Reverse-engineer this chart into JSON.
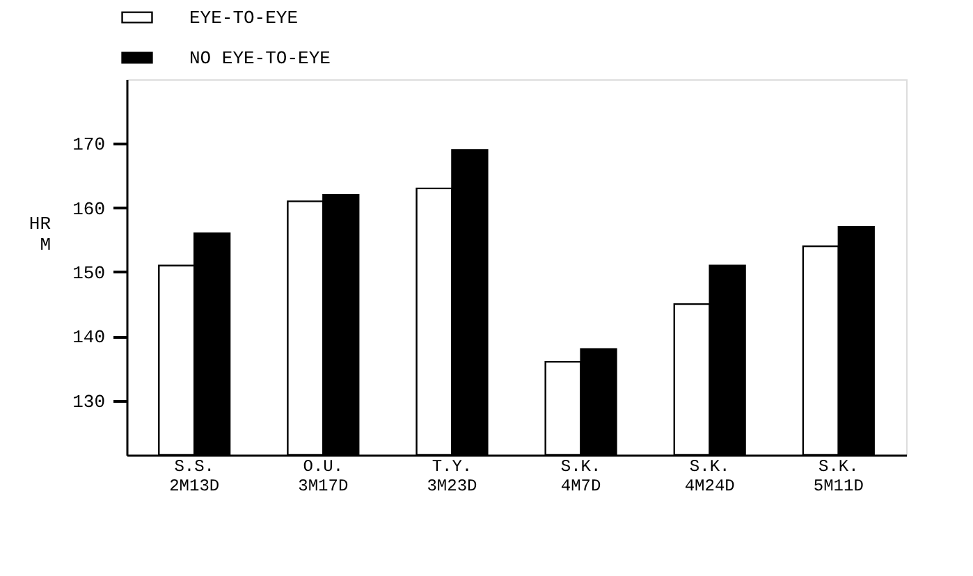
{
  "chart_data": {
    "type": "bar",
    "ylabel": "HR\nM",
    "categories": [
      "S.S.\n2M13D",
      "O.U.\n3M17D",
      "T.Y.\n3M23D",
      "S.K.\n4M7D",
      "S.K.\n4M24D",
      "S.K.\n5M11D"
    ],
    "series": [
      {
        "name": "EYE-TO-EYE",
        "color": "#ffffff",
        "values": [
          151,
          161,
          163,
          136,
          145,
          154
        ]
      },
      {
        "name": "NO EYE-TO-EYE",
        "color": "#000000",
        "values": [
          156,
          162,
          169,
          138,
          151,
          157
        ]
      }
    ],
    "ylim": [
      121.5,
      180
    ],
    "yticks": [
      130,
      140,
      150,
      160,
      170
    ],
    "grid": false,
    "legend": "top"
  }
}
